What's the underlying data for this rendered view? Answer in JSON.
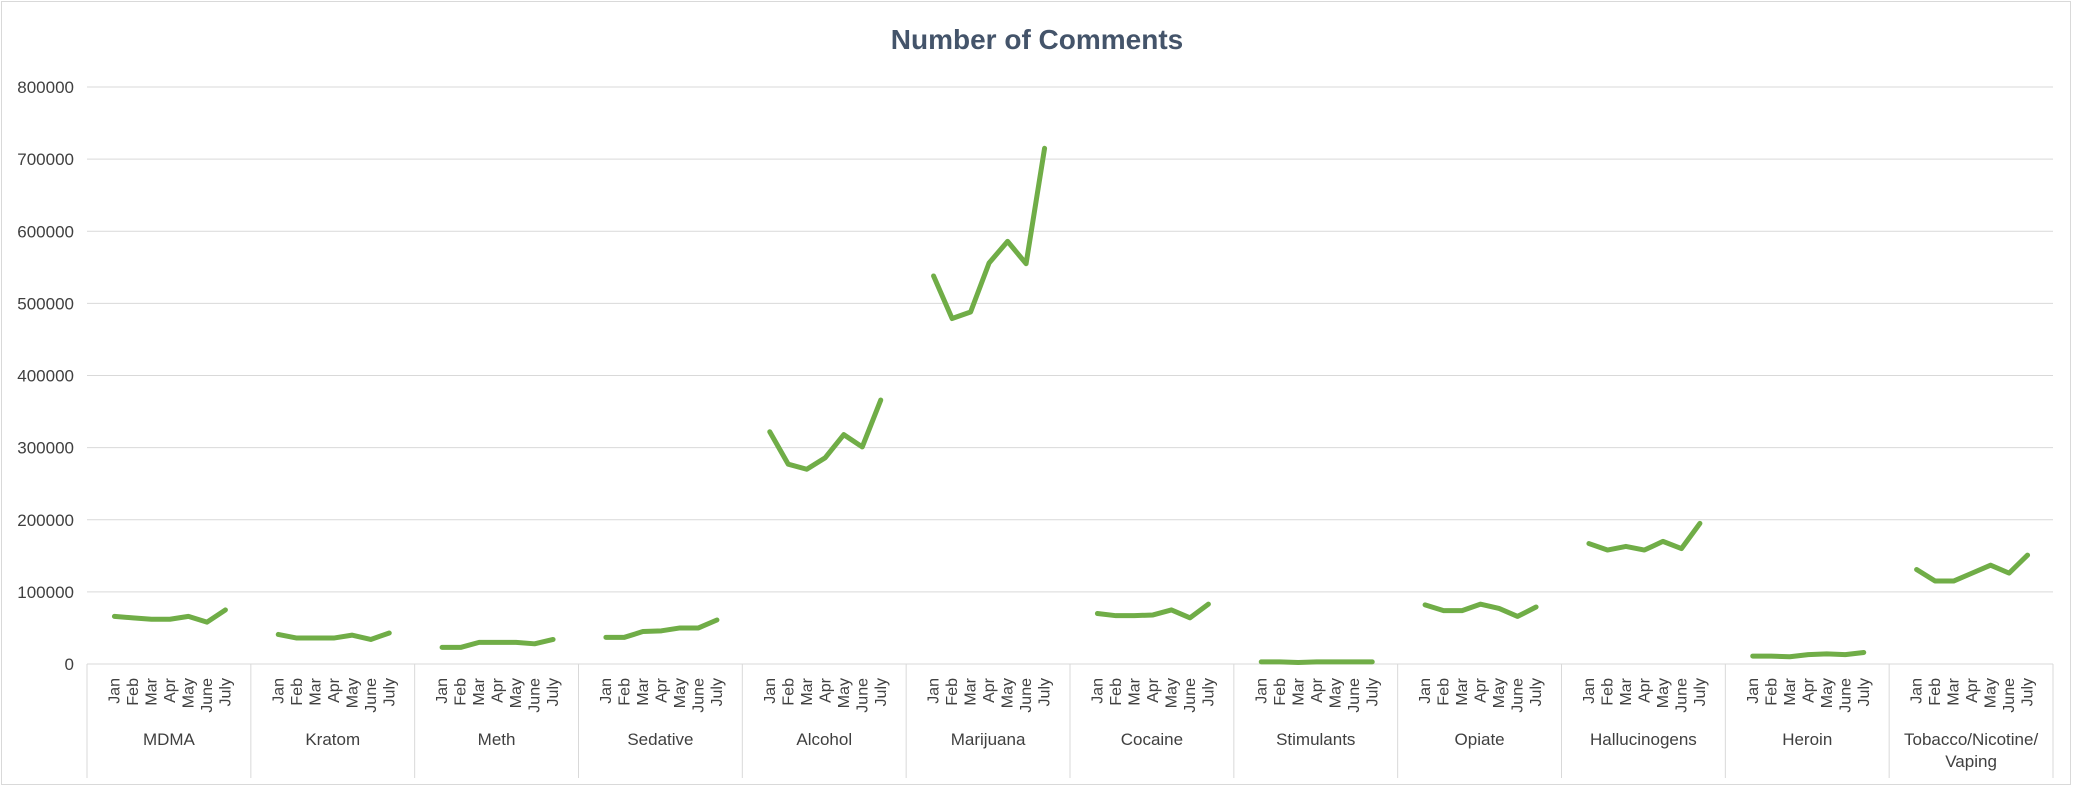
{
  "chart_data": {
    "type": "line",
    "title": "Number of Comments",
    "xlabel": "",
    "ylabel": "",
    "ylim": [
      0,
      800000
    ],
    "yticks": [
      0,
      100000,
      200000,
      300000,
      400000,
      500000,
      600000,
      700000,
      800000
    ],
    "ytick_labels": [
      "0",
      "100000",
      "200000",
      "300000",
      "400000",
      "500000",
      "600000",
      "700000",
      "800000"
    ],
    "grid": true,
    "legend": "none",
    "line_color": "#70ad47",
    "months": [
      "Jan",
      "Feb",
      "Mar",
      "Apr",
      "May",
      "June",
      "July"
    ],
    "groups": [
      {
        "label": "MDMA",
        "values": [
          66000,
          64000,
          62000,
          62000,
          66000,
          58000,
          75000
        ]
      },
      {
        "label": "Kratom",
        "values": [
          41000,
          36000,
          36000,
          36000,
          40000,
          34000,
          43000
        ]
      },
      {
        "label": "Meth",
        "values": [
          23000,
          23000,
          30000,
          30000,
          30000,
          28000,
          34000
        ]
      },
      {
        "label": "Sedative",
        "values": [
          37000,
          37000,
          45000,
          46000,
          50000,
          50000,
          61000
        ]
      },
      {
        "label": "Alcohol",
        "values": [
          322000,
          277000,
          270000,
          286000,
          318000,
          301000,
          366000
        ]
      },
      {
        "label": "Marijuana",
        "values": [
          538000,
          479000,
          488000,
          556000,
          586000,
          555000,
          715000
        ]
      },
      {
        "label": "Cocaine",
        "values": [
          70000,
          67000,
          67000,
          68000,
          75000,
          64000,
          83000
        ]
      },
      {
        "label": "Stimulants",
        "values": [
          3000,
          3000,
          2000,
          3000,
          3000,
          3000,
          3000
        ]
      },
      {
        "label": "Opiate",
        "values": [
          82000,
          74000,
          74000,
          83000,
          77000,
          66000,
          79000
        ]
      },
      {
        "label": "Hallucinogens",
        "values": [
          167000,
          158000,
          163000,
          158000,
          170000,
          160000,
          195000
        ]
      },
      {
        "label": "Heroin",
        "values": [
          11000,
          11000,
          10000,
          13000,
          14000,
          13000,
          16000
        ]
      },
      {
        "label": "Tobacco/Nicotine/Vaping",
        "label_lines": [
          "Tobacco/Nicotine/",
          "Vaping"
        ],
        "values": [
          131000,
          115000,
          115000,
          126000,
          137000,
          126000,
          151000
        ]
      }
    ]
  }
}
